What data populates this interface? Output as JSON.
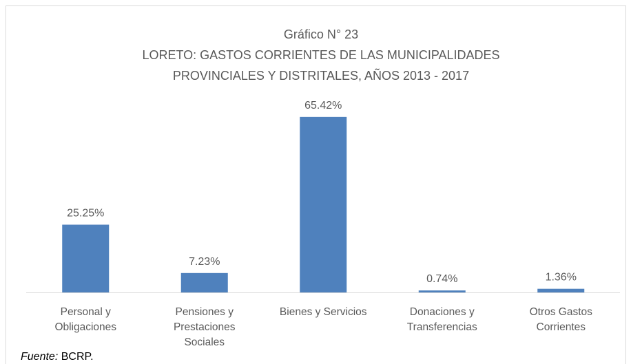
{
  "chart_data": {
    "type": "bar",
    "title": [
      "Gráfico N° 23",
      "LORETO: GASTOS CORRIENTES DE LAS MUNICIPALIDADES",
      "PROVINCIALES Y DISTRITALES, AÑOS 2013 - 2017"
    ],
    "categories": [
      "Personal y\nObligaciones",
      "Pensiones y\nPrestaciones\nSociales",
      "Bienes y Servicios",
      "Donaciones y\nTransferencias",
      "Otros Gastos\nCorrientes"
    ],
    "values": [
      25.25,
      7.23,
      65.42,
      0.74,
      1.36
    ],
    "value_labels": [
      "25.25%",
      "7.23%",
      "65.42%",
      "0.74%",
      "1.36%"
    ],
    "color": "#4f81bd"
  },
  "source": {
    "label": "Fuente:",
    "text": "BCRP."
  }
}
